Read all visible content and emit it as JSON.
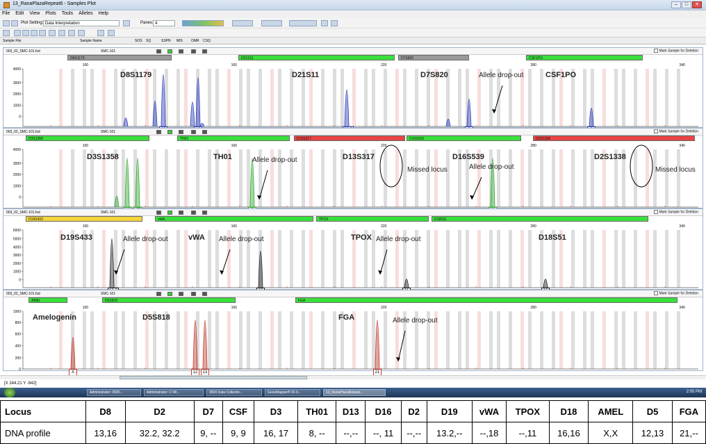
{
  "window": {
    "title": "13_RanaPlazaRepeat6 - Samples Plot",
    "min": "–",
    "max": "□",
    "close": "✕"
  },
  "menu": [
    "File",
    "Edit",
    "View",
    "Plots",
    "Tools",
    "Alleles",
    "Help"
  ],
  "toolbar": {
    "plot_setting_label": "Plot Setting:",
    "plot_setting_value": "Data Interpretation",
    "panes_label": "Panes:",
    "panes_value": "4"
  },
  "columns": {
    "sample_file": "Sample File",
    "sample_name": "Sample Name",
    "sos": "SOS",
    "sq": "SQ",
    "sspn": "SSPN",
    "mis": "MIS",
    "omr": "OMR",
    "csq": "CSQ"
  },
  "panels": [
    {
      "file": "003_02_SMC-101.fsd",
      "sample": "SMC-101",
      "mark": "Mark Sample for Deletion",
      "bins": [
        {
          "name": "D8S1179",
          "color": "gray"
        },
        {
          "name": "D21S11",
          "color": "green"
        },
        {
          "name": "D7S820",
          "color": "gray"
        },
        {
          "name": "CSF1PO",
          "color": "green"
        }
      ],
      "ticks": [
        "100",
        "160",
        "220",
        "280",
        "340"
      ],
      "yticks": [
        "4000",
        "3000",
        "2000",
        "1000",
        "0"
      ],
      "locus_labels": [
        "D8S1179",
        "D21S11",
        "D7S820",
        "CSF1PO"
      ],
      "annotations": [
        "Allele drop-out"
      ],
      "alleles": [
        "13",
        "16",
        "32.2",
        "9",
        "9"
      ]
    },
    {
      "file": "003_02_SMC-101.fsd",
      "sample": "SMC-101",
      "mark": "Mark Sample for Deletion",
      "bins": [
        {
          "name": "D3S1358",
          "color": "green"
        },
        {
          "name": "TH01",
          "color": "green"
        },
        {
          "name": "D13S317",
          "color": "red"
        },
        {
          "name": "D16S539",
          "color": "green"
        },
        {
          "name": "D2S1338",
          "color": "red"
        }
      ],
      "ticks": [
        "100",
        "160",
        "220",
        "280",
        "340"
      ],
      "yticks": [
        "4000",
        "3000",
        "2000",
        "1000",
        "0"
      ],
      "locus_labels": [
        "D3S1358",
        "TH01",
        "D13S317",
        "D16S539",
        "D2S1338"
      ],
      "annotations": [
        "Allele drop-out",
        "Missed locus",
        "Allele drop-out",
        "Missed locus"
      ],
      "alleles": [
        "16",
        "17",
        "8",
        "11"
      ]
    },
    {
      "file": "003_02_SMC-101.fsd",
      "sample": "SMC-101",
      "mark": "Mark Sample for Deletion",
      "bins": [
        {
          "name": "D19S433",
          "color": "yellow"
        },
        {
          "name": "vWA",
          "color": "green"
        },
        {
          "name": "TPOX",
          "color": "green"
        },
        {
          "name": "D18S51",
          "color": "green"
        }
      ],
      "ticks": [
        "100",
        "160",
        "220",
        "280",
        "340"
      ],
      "yticks": [
        "6000",
        "5000",
        "4000",
        "3000",
        "2000",
        "1000",
        "0"
      ],
      "locus_labels": [
        "D19S433",
        "vWA",
        "TPOX",
        "D18S51"
      ],
      "annotations": [
        "Allele drop-out",
        "Allele drop-out",
        "Allele drop-out"
      ],
      "alleles": [
        "13.2",
        "18",
        "11",
        "16"
      ]
    },
    {
      "file": "003_02_SMC-101.fsd",
      "sample": "SMC-101",
      "mark": "Mark Sample for Deletion",
      "bins": [
        {
          "name": "AMEL",
          "color": "green"
        },
        {
          "name": "D5S818",
          "color": "green"
        },
        {
          "name": "FGA",
          "color": "green"
        }
      ],
      "ticks": [
        "100",
        "160",
        "220",
        "280",
        "340"
      ],
      "yticks": [
        "1000",
        "800",
        "600",
        "400",
        "200",
        "0"
      ],
      "locus_labels": [
        "Amelogenin",
        "D5S818",
        "FGA"
      ],
      "annotations": [
        "Allele drop-out"
      ],
      "alleles": [
        "X",
        "12",
        "13",
        "21"
      ]
    }
  ],
  "status": {
    "coords": "[X 244.21  Y -942]"
  },
  "taskbar": {
    "items": [
      "Administrator: 3500...",
      "Administrator: C:\\W...",
      "3500 Data Collectio...",
      "GeneMapper® ID-X...",
      "13_RanaPlazaRepeat..."
    ],
    "clock": "2:05 PM"
  },
  "profile": {
    "header": [
      "Locus",
      "D8",
      "D2",
      "D7",
      "CSF",
      "D3",
      "TH01",
      "D13",
      "D16",
      "D2",
      "D19",
      "vWA",
      "TPOX",
      "D18",
      "AMEL",
      "D5",
      "FGA"
    ],
    "row": [
      "DNA profile",
      "13,16",
      "32.2, 32.2",
      "9, --",
      "9, 9",
      "16, 17",
      "8, --",
      "--,--",
      "--, 11",
      "--,--",
      "13.2,--",
      "--,18",
      "--,11",
      "16,16",
      "X,X",
      "12,13",
      "21,--"
    ]
  },
  "colors": {
    "blue": "#2f3fbf",
    "green": "#2fa82f",
    "black": "#222222",
    "red": "#c0392b"
  }
}
